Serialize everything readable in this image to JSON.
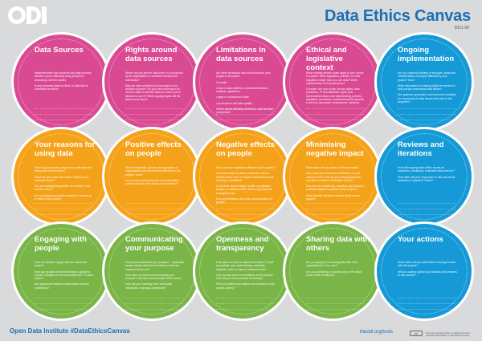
{
  "header": {
    "logo_text": "ODI",
    "title": "Data Ethics Canvas",
    "version": "2021-05"
  },
  "colors": {
    "pink": "#da4a93",
    "orange": "#f5a21b",
    "green": "#7ab547",
    "blue": "#159ad7",
    "title_blue": "#1d6fb3",
    "background": "#d9dadc"
  },
  "rows": [
    [
      {
        "title": "Data Sources",
        "color": "pink",
        "prompts": [
          "Name/describe your project's key data sources, whether you're collecting data yourself or accessing via third parties.",
          "Is any personal data involved, or data that is otherwise sensitive?"
        ]
      },
      {
        "title": "Rights around data sources",
        "color": "pink",
        "prompts": [
          "Where did you get the data from? Is it produced by an organisation or collected directly from individuals?",
          "Was the data collected for this project or for another purpose? Do you have permission to use this data or another basis on which you're allowed to use it? What ongoing rights will the data source have?"
        ]
      },
      {
        "title": "Limitations in data sources",
        "color": "pink",
        "prompts": [
          "Are there limitations that could influence your project's outcomes?",
          "Consider:",
          "• bias in data collection, inclusion/exclusion, analysis, algorithms",
          "• gaps or omissions in data",
          "• provenance and data quality",
          "• other issues affecting decisions, such as team composition"
        ]
      },
      {
        "title": "Ethical and legislative context",
        "color": "pink",
        "prompts": [
          "What existing ethical codes apply to your sector or project? What legislation, policies, or other regulation shape how you use data? What requirements do they introduce?",
          "Consider: the rule of law; human rights; data protection; IP and database rights; anti-discrimination laws; and data sharing, policies, regulation and ethics codes/frameworks specific to sectors (eg health, employment, taxation)."
        ]
      },
      {
        "title": "Ongoing implementation",
        "color": "blue",
        "prompts": [
          "Are you routinely building in thoughts, ideas and considerations of people affected by your project? How?",
          "What information or training might be needed to help people understand data issues?",
          "Are systems, processes and resources available for responding to data issues that arise in the long term?"
        ]
      }
    ],
    [
      {
        "title": "Your reasons for using data",
        "color": "orange",
        "prompts": [
          "What is your primary purpose for collecting and using data in this project?",
          "What are your main use cases? What is your business model?",
          "Are you making things better for society? How and for whom?",
          "Are you replacing another product or service as a result of this project?"
        ]
      },
      {
        "title": "Positive effects on people",
        "color": "orange",
        "prompts": [
          "Which individuals, groups, demographics or organisations will be positively affected by this project? How?",
          "How are you measuring and communicating positive impact? How could you increase it?"
        ]
      },
      {
        "title": "Negative effects on people",
        "color": "orange",
        "prompts": [
          "Who could be negatively affected by this project?",
          "Could the way that data is collected, used or shared cause harm or expose individuals to risk of being re-identified?",
          "Could it be used to target, profile or prejudice people, or unfairly restrict access (eg exclusive arrangements)?",
          "How are limitations and risks communicated to people?"
        ]
      },
      {
        "title": "Minimising negative impact",
        "color": "orange",
        "prompts": [
          "What steps can you take to minimise harm?",
          "How could you reduce any limitations in your data sources? How are you keeping personal and other sensitive information secure?",
          "How are you measuring, reporting and acting on potential negative impacts of your project?",
          "What benefits will these actions bring to your project?"
        ]
      },
      {
        "title": "Reviews and iterations",
        "color": "blue",
        "prompts": [
          "How will ongoing data ethics issues be measured, monitored, evaluated and acted on?",
          "How often will your responses to this canvas be reviewed or updated? Which?"
        ]
      }
    ],
    [
      {
        "title": "Engaging with people",
        "color": "green",
        "prompts": [
          "How can people engage with you about the project?",
          "How can people correct information, appeal or request changes to the product/service? To what extent?",
          "Are appeal mechanisms reasonable and well understood?"
        ]
      },
      {
        "title": "Communicating your purpose",
        "color": "green",
        "prompts": [
          "Do people understand your purpose – especially people whose interests is actively or who are impacted by its use?",
          "How have you been communicating your purpose? Has this communication been clear?",
          "How are you ensuring more vulnerable individuals or groups understand?"
        ]
      },
      {
        "title": "Openness and transparency",
        "color": "green",
        "prompts": [
          "How open can you be about this project? Could you publish your methodology, metadata, datasets, code or impact measurements?",
          "Can you ask peers for feedback on the project? How will you communicate it internally?",
          "Will you publish your actions and answers to this canvas openly?"
        ]
      },
      {
        "title": "Sharing data with others",
        "color": "green",
        "prompts": [
          "Are you going to be sharing data with other organisations? If so, who?",
          "Are you publishing or opening any of the data? Under what conditions?"
        ]
      },
      {
        "title": "Your actions",
        "color": "blue",
        "prompts": [
          "What action will you take before moving forward with this project?",
          "Will you openly publish your actions and answers to this canvas?"
        ]
      }
    ]
  ],
  "footer": {
    "org": "Open Data Institute #DataEthicsCanvas",
    "url": "theodi.org/tools",
    "cc_badge": "cc",
    "license": "This tool is licensed under a Creative Commons Attribution-ShareAlike 4.0 International License."
  }
}
